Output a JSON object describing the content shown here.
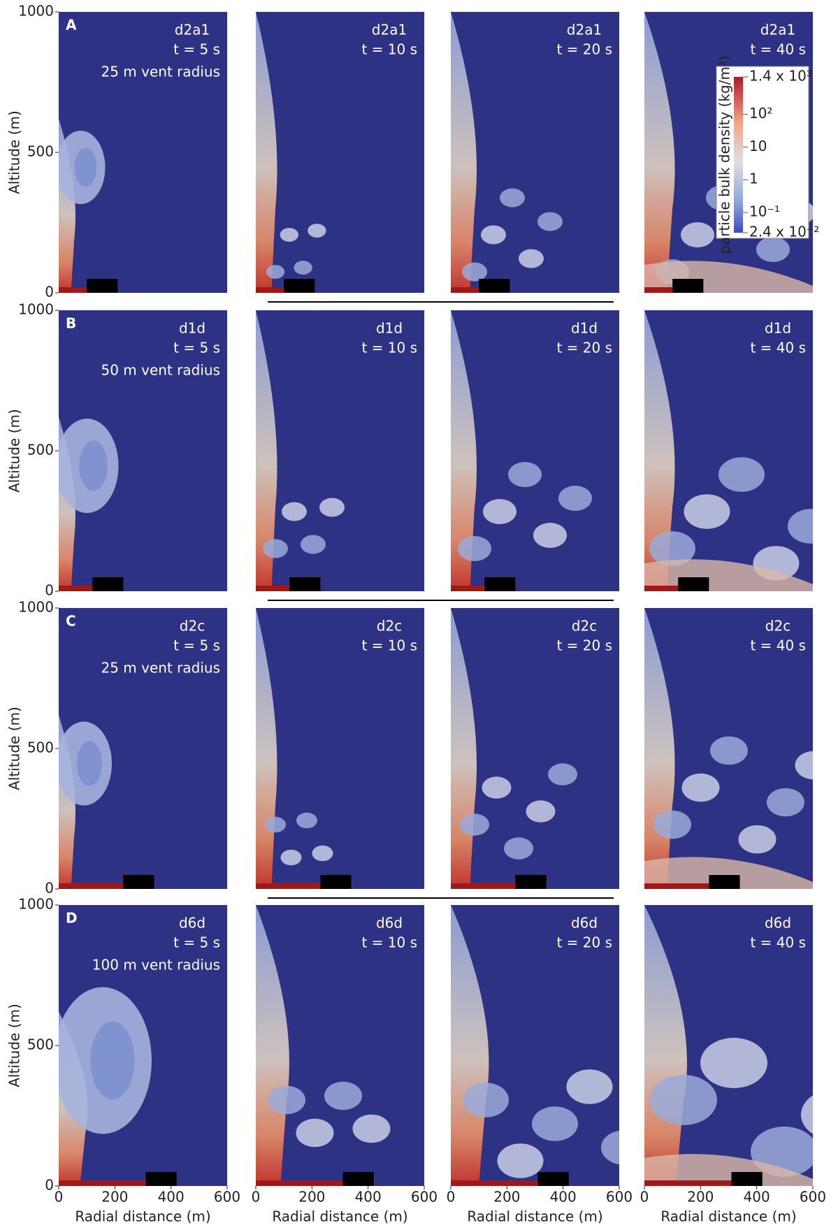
{
  "axes": {
    "y_label": "Altitude (m)",
    "x_label": "Radial distance (m)",
    "xlim": [
      0,
      600
    ],
    "ylim": [
      0,
      1000
    ],
    "xticks": [
      0,
      200,
      400,
      600
    ],
    "yticks": [
      0,
      500,
      1000
    ]
  },
  "colorbar": {
    "title": "particle bulk density (kg/m³)",
    "log": true,
    "lim": [
      0.024,
      1400
    ],
    "ticks": [
      {
        "value": 1400,
        "label": "1.4 x 10³"
      },
      {
        "value": 100,
        "label": "10²"
      },
      {
        "value": 10,
        "label": "10"
      },
      {
        "value": 1,
        "label": "1"
      },
      {
        "value": 0.1,
        "label": "10⁻¹"
      },
      {
        "value": 0.024,
        "label": "2.4 x 10⁻²"
      }
    ]
  },
  "rows": [
    {
      "label": "A",
      "vent": "25 m vent radius",
      "panels": [
        {
          "run": "d2a1",
          "time": "t = 5 s"
        },
        {
          "run": "d2a1",
          "time": "t = 10 s"
        },
        {
          "run": "d2a1",
          "time": "t = 20 s"
        },
        {
          "run": "d2a1",
          "time": "t = 40 s"
        }
      ]
    },
    {
      "label": "B",
      "vent": "50 m vent radius",
      "panels": [
        {
          "run": "d1d",
          "time": "t = 5 s"
        },
        {
          "run": "d1d",
          "time": "t = 10 s"
        },
        {
          "run": "d1d",
          "time": "t = 20 s"
        },
        {
          "run": "d1d",
          "time": "t = 40 s"
        }
      ]
    },
    {
      "label": "C",
      "vent": "25 m vent radius",
      "panels": [
        {
          "run": "d2c",
          "time": "t = 5 s"
        },
        {
          "run": "d2c",
          "time": "t = 10 s"
        },
        {
          "run": "d2c",
          "time": "t = 20 s"
        },
        {
          "run": "d2c",
          "time": "t = 40 s"
        }
      ]
    },
    {
      "label": "D",
      "vent": "100 m vent radius",
      "panels": [
        {
          "run": "d6d",
          "time": "t = 5 s"
        },
        {
          "run": "d6d",
          "time": "t = 10 s"
        },
        {
          "run": "d6d",
          "time": "t = 20 s"
        },
        {
          "run": "d6d",
          "time": "t = 40 s"
        }
      ]
    }
  ]
}
